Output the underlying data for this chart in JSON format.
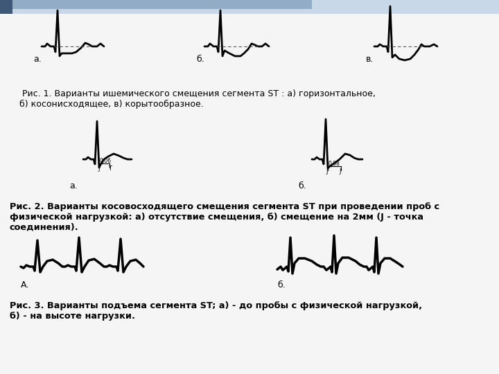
{
  "bg_color": "#f5f5f5",
  "ecg_color": "#000000",
  "ecg_lw": 2.0,
  "header_color1": "#c8d8e8",
  "header_color2": "#7090b0",
  "fig1_caption": " Рис. 1. Варианты ишемического смещения сегмента ST : а) горизонтальное,\nб) косонисходящее, в) корытообразное.",
  "fig2_caption": "Рис. 2. Варианты косовосходящего смещения сегмента ST при проведении проб с\nфизической нагрузкой: а) отсутствие смещения, б) смещение на 2мм (J - точка\nсоединения).",
  "fig3_caption": "Рис. 3. Варианты подъема сегмента ST; а) - до пробы с физической нагрузкой,\nб) - на высоте нагрузки.",
  "label_a1": "а.",
  "label_b1": "б.",
  "label_v1": "в.",
  "label_a2": "а.",
  "label_b2": "б.",
  "label_A3": "А.",
  "label_b3": "б.",
  "caption_fontsize": 9.0,
  "label_fontsize": 9.0
}
